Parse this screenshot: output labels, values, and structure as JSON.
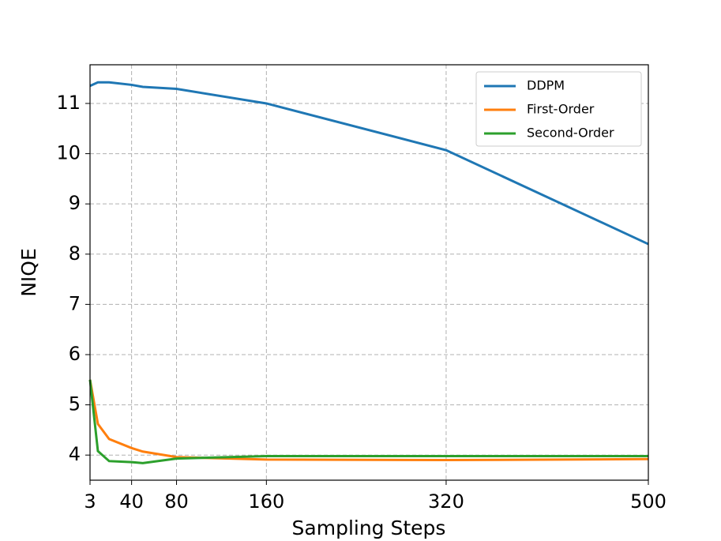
{
  "chart_data": {
    "type": "line",
    "xlabel": "Sampling Steps",
    "ylabel": "NIQE",
    "x": [
      3,
      10,
      20,
      40,
      50,
      80,
      160,
      320,
      500
    ],
    "series": [
      {
        "name": "DDPM",
        "color": "#1f77b4",
        "values": [
          11.35,
          11.42,
          11.42,
          11.37,
          11.33,
          11.29,
          11.0,
          10.07,
          8.2
        ]
      },
      {
        "name": "First-Order",
        "color": "#ff7f0e",
        "values": [
          5.5,
          4.62,
          4.32,
          4.14,
          4.07,
          3.96,
          3.91,
          3.9,
          3.92
        ]
      },
      {
        "name": "Second-Order",
        "color": "#2ca02c",
        "values": [
          5.5,
          4.08,
          3.88,
          3.86,
          3.84,
          3.93,
          3.98,
          3.98,
          3.98
        ]
      }
    ],
    "xlim": [
      3,
      500
    ],
    "ylim": [
      3.5,
      11.77
    ],
    "xticks": [
      3,
      40,
      80,
      160,
      320,
      500
    ],
    "yticks": [
      4,
      5,
      6,
      7,
      8,
      9,
      10,
      11
    ],
    "grid": true,
    "legend": "upper right"
  }
}
